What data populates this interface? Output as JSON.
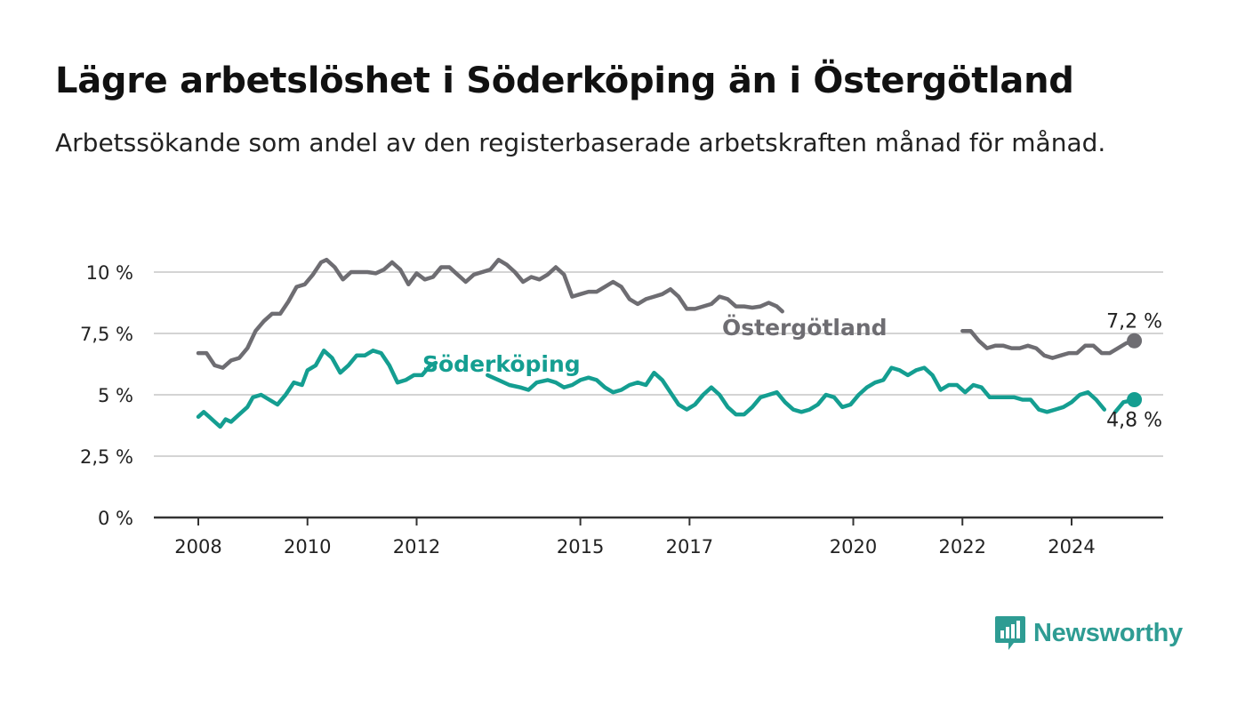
{
  "title": "Lägre arbetslöshet i Söderköping än i Östergötland",
  "subtitle": "Arbetssökande som andel av den registerbaserade arbetskraften månad för månad.",
  "brand": {
    "name": "Newsworthy",
    "icon": "newsworthy-logo-icon",
    "color": "#2e9c93"
  },
  "chart_data": {
    "type": "line",
    "x_axis": {
      "ticks": [
        2008,
        2010,
        2012,
        2015,
        2017,
        2020,
        2022,
        2024
      ],
      "range": [
        2007.2,
        2026.7
      ]
    },
    "y_axis": {
      "range": [
        0,
        11
      ],
      "ticks": [
        0,
        2.5,
        5,
        7.5,
        10
      ],
      "tick_labels": [
        "0 %",
        "2,5 %",
        "5 %",
        "7,5 %",
        "10 %"
      ]
    },
    "grid": true,
    "series": [
      {
        "name": "Östergötland",
        "color": "#6e6d72",
        "end_label": "7,2 %",
        "points": [
          [
            2008.0,
            6.7
          ],
          [
            2008.15,
            6.7
          ],
          [
            2008.3,
            6.2
          ],
          [
            2008.45,
            6.1
          ],
          [
            2008.6,
            6.4
          ],
          [
            2008.75,
            6.5
          ],
          [
            2008.9,
            6.9
          ],
          [
            2009.05,
            7.6
          ],
          [
            2009.2,
            8.0
          ],
          [
            2009.35,
            8.3
          ],
          [
            2009.5,
            8.3
          ],
          [
            2009.65,
            8.8
          ],
          [
            2009.8,
            9.4
          ],
          [
            2009.95,
            9.5
          ],
          [
            2010.1,
            9.9
          ],
          [
            2010.25,
            10.4
          ],
          [
            2010.35,
            10.5
          ],
          [
            2010.5,
            10.2
          ],
          [
            2010.65,
            9.7
          ],
          [
            2010.8,
            10.0
          ],
          [
            2010.95,
            10.0
          ],
          [
            2011.1,
            10.0
          ],
          [
            2011.25,
            9.95
          ],
          [
            2011.4,
            10.1
          ],
          [
            2011.55,
            10.4
          ],
          [
            2011.7,
            10.1
          ],
          [
            2011.85,
            9.5
          ],
          [
            2012.0,
            9.95
          ],
          [
            2012.15,
            9.7
          ],
          [
            2012.3,
            9.8
          ],
          [
            2012.45,
            10.2
          ],
          [
            2012.6,
            10.2
          ],
          [
            2012.75,
            9.9
          ],
          [
            2012.9,
            9.6
          ],
          [
            2013.05,
            9.9
          ],
          [
            2013.2,
            10.0
          ],
          [
            2013.35,
            10.1
          ],
          [
            2013.5,
            10.5
          ],
          [
            2013.65,
            10.3
          ],
          [
            2013.8,
            10.0
          ],
          [
            2013.95,
            9.6
          ],
          [
            2014.1,
            9.8
          ],
          [
            2014.25,
            9.7
          ],
          [
            2014.4,
            9.9
          ],
          [
            2014.55,
            10.2
          ],
          [
            2014.7,
            9.9
          ],
          [
            2014.85,
            9.0
          ],
          [
            2015.0,
            9.1
          ],
          [
            2015.15,
            9.2
          ],
          [
            2015.3,
            9.2
          ],
          [
            2015.45,
            9.4
          ],
          [
            2015.6,
            9.6
          ],
          [
            2015.75,
            9.4
          ],
          [
            2015.9,
            8.9
          ],
          [
            2016.05,
            8.7
          ],
          [
            2016.2,
            8.9
          ],
          [
            2016.35,
            9.0
          ],
          [
            2016.5,
            9.1
          ],
          [
            2016.65,
            9.3
          ],
          [
            2016.8,
            9.0
          ],
          [
            2016.95,
            8.5
          ],
          [
            2017.1,
            8.5
          ],
          [
            2017.25,
            8.6
          ],
          [
            2017.4,
            8.7
          ],
          [
            2017.55,
            9.0
          ],
          [
            2017.7,
            8.9
          ],
          [
            2017.85,
            8.6
          ],
          [
            2018.0,
            8.6
          ],
          [
            2018.15,
            8.55
          ],
          [
            2018.3,
            8.6
          ],
          [
            2018.45,
            8.75
          ],
          [
            2018.6,
            8.6
          ],
          [
            2018.7,
            8.4
          ],
          null,
          [
            2022.0,
            7.6
          ],
          [
            2022.15,
            7.6
          ],
          [
            2022.3,
            7.2
          ],
          [
            2022.45,
            6.9
          ],
          [
            2022.6,
            7.0
          ],
          [
            2022.75,
            7.0
          ],
          [
            2022.9,
            6.9
          ],
          [
            2023.05,
            6.9
          ],
          [
            2023.2,
            7.0
          ],
          [
            2023.35,
            6.9
          ],
          [
            2023.5,
            6.6
          ],
          [
            2023.65,
            6.5
          ],
          [
            2023.8,
            6.6
          ],
          [
            2023.95,
            6.7
          ],
          [
            2024.1,
            6.7
          ],
          [
            2024.25,
            7.0
          ],
          [
            2024.4,
            7.0
          ],
          [
            2024.55,
            6.7
          ],
          [
            2024.7,
            6.7
          ],
          [
            2024.85,
            6.9
          ],
          [
            2025.0,
            7.1
          ],
          [
            2025.15,
            7.2
          ]
        ]
      },
      {
        "name": "Söderköping",
        "color": "#149e91",
        "end_label": "4,8 %",
        "points": [
          [
            2008.0,
            4.1
          ],
          [
            2008.1,
            4.3
          ],
          [
            2008.2,
            4.1
          ],
          [
            2008.3,
            3.9
          ],
          [
            2008.4,
            3.7
          ],
          [
            2008.5,
            4.0
          ],
          [
            2008.6,
            3.9
          ],
          [
            2008.75,
            4.2
          ],
          [
            2008.9,
            4.5
          ],
          [
            2009.0,
            4.9
          ],
          [
            2009.15,
            5.0
          ],
          [
            2009.3,
            4.8
          ],
          [
            2009.45,
            4.6
          ],
          [
            2009.6,
            5.0
          ],
          [
            2009.75,
            5.5
          ],
          [
            2009.9,
            5.4
          ],
          [
            2010.0,
            6.0
          ],
          [
            2010.15,
            6.2
          ],
          [
            2010.3,
            6.8
          ],
          [
            2010.45,
            6.5
          ],
          [
            2010.6,
            5.9
          ],
          [
            2010.75,
            6.2
          ],
          [
            2010.9,
            6.6
          ],
          [
            2011.05,
            6.6
          ],
          [
            2011.2,
            6.8
          ],
          [
            2011.35,
            6.7
          ],
          [
            2011.5,
            6.2
          ],
          [
            2011.65,
            5.5
          ],
          [
            2011.8,
            5.6
          ],
          [
            2011.95,
            5.8
          ],
          [
            2012.1,
            5.8
          ],
          [
            2012.25,
            6.2
          ],
          [
            2012.35,
            6.3
          ],
          null,
          [
            2013.3,
            5.8
          ],
          [
            2013.5,
            5.6
          ],
          [
            2013.7,
            5.4
          ],
          [
            2013.9,
            5.3
          ],
          [
            2014.05,
            5.2
          ],
          [
            2014.2,
            5.5
          ],
          [
            2014.4,
            5.6
          ],
          [
            2014.55,
            5.5
          ],
          [
            2014.7,
            5.3
          ],
          [
            2014.85,
            5.4
          ],
          [
            2015.0,
            5.6
          ],
          [
            2015.15,
            5.7
          ],
          [
            2015.3,
            5.6
          ],
          [
            2015.45,
            5.3
          ],
          [
            2015.6,
            5.1
          ],
          [
            2015.75,
            5.2
          ],
          [
            2015.9,
            5.4
          ],
          [
            2016.05,
            5.5
          ],
          [
            2016.2,
            5.4
          ],
          [
            2016.35,
            5.9
          ],
          [
            2016.5,
            5.6
          ],
          [
            2016.65,
            5.1
          ],
          [
            2016.8,
            4.6
          ],
          [
            2016.95,
            4.4
          ],
          [
            2017.1,
            4.6
          ],
          [
            2017.25,
            5.0
          ],
          [
            2017.4,
            5.3
          ],
          [
            2017.55,
            5.0
          ],
          [
            2017.7,
            4.5
          ],
          [
            2017.85,
            4.2
          ],
          [
            2018.0,
            4.2
          ],
          [
            2018.15,
            4.5
          ],
          [
            2018.3,
            4.9
          ],
          [
            2018.45,
            5.0
          ],
          [
            2018.6,
            5.1
          ],
          [
            2018.75,
            4.7
          ],
          [
            2018.9,
            4.4
          ],
          [
            2019.05,
            4.3
          ],
          [
            2019.2,
            4.4
          ],
          [
            2019.35,
            4.6
          ],
          [
            2019.5,
            5.0
          ],
          [
            2019.65,
            4.9
          ],
          [
            2019.8,
            4.5
          ],
          [
            2019.95,
            4.6
          ],
          [
            2020.1,
            5.0
          ],
          [
            2020.25,
            5.3
          ],
          [
            2020.4,
            5.5
          ],
          [
            2020.55,
            5.6
          ],
          [
            2020.7,
            6.1
          ],
          [
            2020.85,
            6.0
          ],
          [
            2021.0,
            5.8
          ],
          [
            2021.15,
            6.0
          ],
          [
            2021.3,
            6.1
          ],
          [
            2021.45,
            5.8
          ],
          [
            2021.6,
            5.2
          ],
          [
            2021.75,
            5.4
          ],
          [
            2021.9,
            5.4
          ],
          [
            2022.05,
            5.1
          ],
          [
            2022.2,
            5.4
          ],
          [
            2022.35,
            5.3
          ],
          [
            2022.5,
            4.9
          ],
          [
            2022.65,
            4.9
          ],
          [
            2022.8,
            4.9
          ],
          [
            2022.95,
            4.9
          ],
          [
            2023.1,
            4.8
          ],
          [
            2023.25,
            4.8
          ],
          [
            2023.4,
            4.4
          ],
          [
            2023.55,
            4.3
          ],
          [
            2023.7,
            4.4
          ],
          [
            2023.85,
            4.5
          ],
          [
            2024.0,
            4.7
          ],
          [
            2024.15,
            5.0
          ],
          [
            2024.3,
            5.1
          ],
          [
            2024.45,
            4.8
          ],
          [
            2024.6,
            4.4
          ],
          null,
          [
            2024.8,
            4.3
          ],
          [
            2024.95,
            4.7
          ],
          [
            2025.15,
            4.8
          ]
        ]
      }
    ]
  }
}
